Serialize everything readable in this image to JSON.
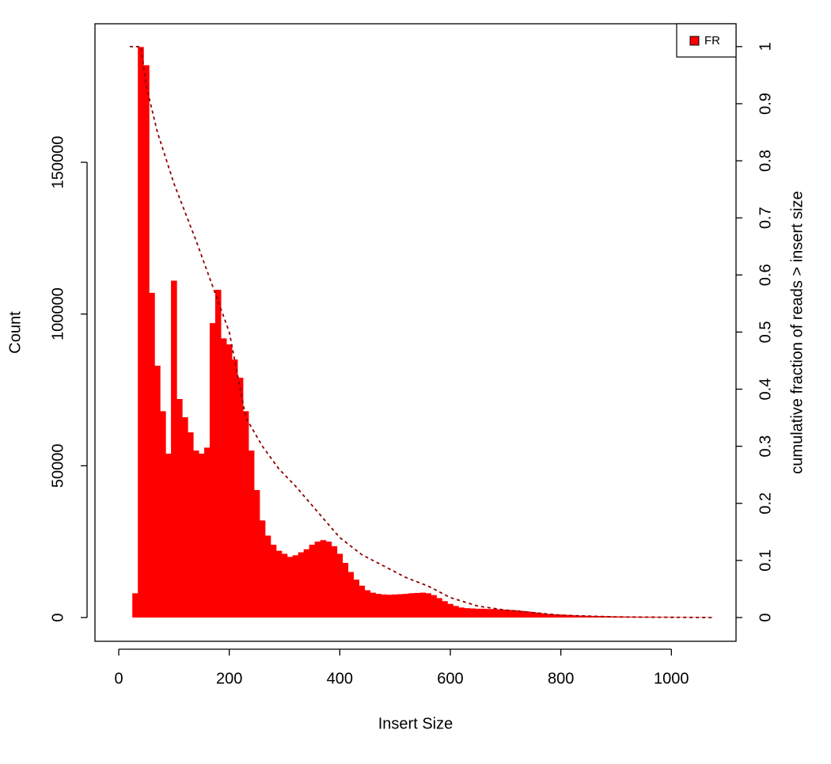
{
  "chart_data": {
    "type": "histogram-lines",
    "x_label": "Insert Size",
    "y_label": "Count",
    "y2_label": "cumulative fraction of reads > insert size",
    "x": [
      20,
      30,
      40,
      50,
      60,
      70,
      80,
      90,
      100,
      110,
      120,
      130,
      140,
      150,
      160,
      170,
      180,
      190,
      200,
      210,
      220,
      230,
      240,
      250,
      260,
      270,
      280,
      290,
      300,
      310,
      320,
      330,
      340,
      350,
      360,
      370,
      380,
      390,
      400,
      410,
      420,
      430,
      440,
      450,
      460,
      470,
      480,
      490,
      500,
      510,
      520,
      530,
      540,
      550,
      560,
      570,
      580,
      590,
      600,
      610,
      620,
      630,
      640,
      650,
      660,
      670,
      680,
      690,
      700,
      710,
      720,
      730,
      740,
      750,
      760,
      770,
      780,
      790,
      800,
      810,
      820,
      830,
      840,
      850,
      860,
      870,
      880,
      890,
      900,
      910,
      920,
      930,
      940,
      950,
      960,
      970,
      980,
      990,
      1000,
      1010,
      1020,
      1030,
      1040,
      1050,
      1060,
      1070
    ],
    "series": [
      {
        "name": "FR",
        "color": "#ff0000",
        "values": [
          0,
          8000,
          188000,
          182000,
          107000,
          83000,
          68000,
          54000,
          111000,
          72000,
          66000,
          61000,
          55000,
          54000,
          56000,
          97000,
          108000,
          92000,
          90000,
          85000,
          79000,
          68000,
          55000,
          42000,
          32000,
          27000,
          24000,
          22000,
          21000,
          20000,
          20500,
          21500,
          22500,
          24000,
          25000,
          25500,
          25000,
          23500,
          21000,
          18000,
          15000,
          12500,
          10500,
          9000,
          8200,
          7800,
          7600,
          7500,
          7600,
          7700,
          7800,
          8000,
          8100,
          8200,
          8000,
          7400,
          6400,
          5400,
          4500,
          3800,
          3300,
          3100,
          3000,
          2900,
          2900,
          2800,
          2800,
          2700,
          2600,
          2500,
          2400,
          2200,
          2000,
          1800,
          1600,
          1400,
          1200,
          1100,
          1000,
          900,
          800,
          700,
          650,
          600,
          550,
          500,
          460,
          420,
          390,
          360,
          330,
          300,
          280,
          260,
          240,
          220,
          200,
          180,
          160,
          140,
          120,
          110,
          100,
          90,
          80,
          70
        ]
      }
    ],
    "cumulative": {
      "color": "#8b0000",
      "axis": "y2",
      "x": [
        20,
        40,
        50,
        70,
        100,
        140,
        170,
        200,
        230,
        260,
        290,
        320,
        360,
        400,
        440,
        480,
        520,
        560,
        600,
        650,
        700,
        800,
        900,
        1075
      ],
      "values": [
        1,
        1,
        0.93,
        0.85,
        0.76,
        0.66,
        0.58,
        0.5,
        0.35,
        0.3,
        0.26,
        0.23,
        0.185,
        0.14,
        0.11,
        0.09,
        0.07,
        0.055,
        0.035,
        0.02,
        0.013,
        0.004,
        0.001,
        0
      ]
    },
    "xlim": [
      -43,
      1117
    ],
    "ylim": [
      -7826,
      195650
    ],
    "y2lim": [
      -0.0416,
      1.04
    ],
    "xticks": [
      0,
      200,
      400,
      600,
      800,
      1000
    ],
    "yticks": [
      0,
      50000,
      100000,
      150000
    ],
    "y2ticks": [
      0,
      0.1,
      0.2,
      0.3,
      0.4,
      0.5,
      0.6,
      0.7,
      0.8,
      0.9,
      1
    ],
    "legend": "top-right"
  }
}
